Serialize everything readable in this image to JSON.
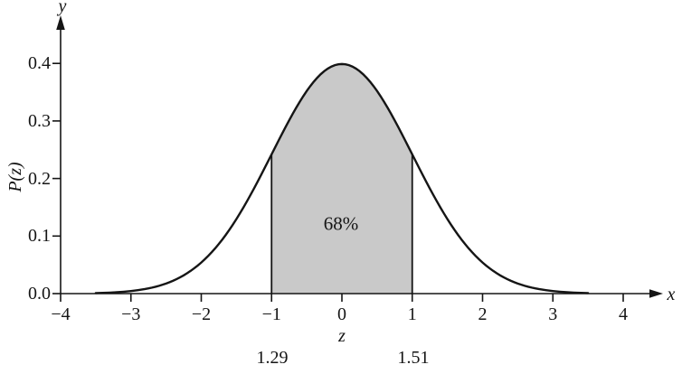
{
  "chart_data": {
    "type": "area",
    "title": "",
    "distribution": "standard-normal",
    "x_axis": {
      "label": "z",
      "arrow_label": "x",
      "range": [
        -4,
        4.6
      ],
      "ticks": [
        -4,
        -3,
        -2,
        -1,
        0,
        1,
        2,
        3,
        4
      ],
      "tick_labels": [
        "−4",
        "−3",
        "−2",
        "−1",
        "0",
        "1",
        "2",
        "3",
        "4"
      ]
    },
    "y_axis": {
      "label": "P(z)",
      "arrow_label": "y",
      "range": [
        0,
        0.46
      ],
      "ticks": [
        0.0,
        0.1,
        0.2,
        0.3,
        0.4
      ],
      "tick_labels": [
        "0.0",
        "0.1",
        "0.2",
        "0.3",
        "0.4"
      ]
    },
    "curve": {
      "z_min": -3.5,
      "z_max": 3.5,
      "color": "#151515",
      "key_points": [
        {
          "z": -3,
          "P": 0.0044
        },
        {
          "z": -2,
          "P": 0.054
        },
        {
          "z": -1,
          "P": 0.242
        },
        {
          "z": 0,
          "P": 0.3989
        },
        {
          "z": 1,
          "P": 0.242
        },
        {
          "z": 2,
          "P": 0.054
        },
        {
          "z": 3,
          "P": 0.0044
        }
      ]
    },
    "shaded_region": {
      "z_from": -1,
      "z_to": 1,
      "area_label": "68%",
      "fill_color": "#c9c9c9",
      "edge_color": "#151515"
    },
    "annotations": {
      "below_minus1": "1.29",
      "below_plus1": "1.51"
    },
    "layout_hints": {
      "grid": "off",
      "legend": "none",
      "background": "#ffffff"
    }
  }
}
